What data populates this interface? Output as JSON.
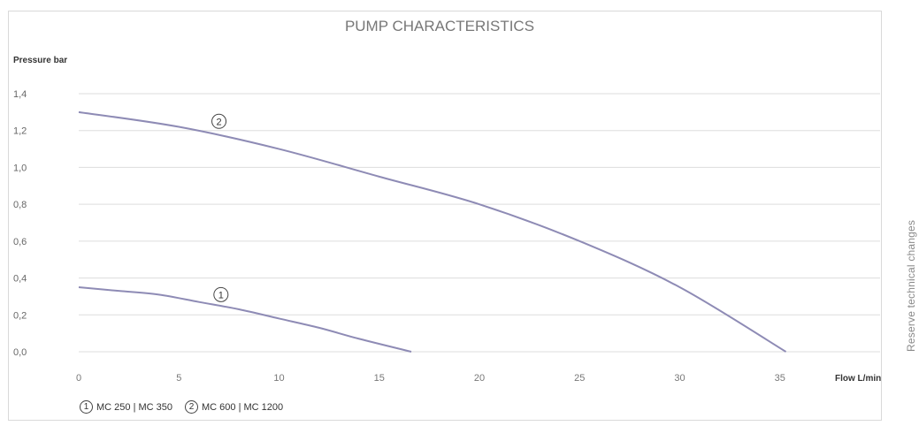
{
  "side_note": "Reserve technical changes",
  "chart_data": {
    "type": "line",
    "title": "PUMP CHARACTERISTICS",
    "ylabel": "Pressure bar",
    "xlabel": "Flow L/min",
    "xlim": [
      0,
      40
    ],
    "ylim": [
      0,
      1.4
    ],
    "x_ticks": [
      0,
      5,
      10,
      15,
      20,
      25,
      30,
      35
    ],
    "x_tick_labels": [
      "0",
      "5",
      "10",
      "15",
      "20",
      "25",
      "30",
      "35"
    ],
    "y_ticks": [
      0,
      0.2,
      0.4,
      0.6,
      0.8,
      1.0,
      1.2,
      1.4
    ],
    "y_tick_labels": [
      "0,0",
      "0,2",
      "0,4",
      "0,6",
      "0,8",
      "1,0",
      "1,2",
      "1,4"
    ],
    "grid": true,
    "line_color": "#8e8bb5",
    "series": [
      {
        "label": "1",
        "x": [
          0,
          2,
          4,
          6,
          8,
          10,
          12,
          14,
          16.6
        ],
        "y": [
          0.35,
          0.33,
          0.31,
          0.27,
          0.23,
          0.18,
          0.13,
          0.07,
          0.0
        ],
        "marker_at": [
          7.1,
          0.31
        ]
      },
      {
        "label": "2",
        "x": [
          0,
          5,
          10,
          15,
          20,
          25,
          30,
          35.3
        ],
        "y": [
          1.3,
          1.22,
          1.1,
          0.95,
          0.8,
          0.6,
          0.35,
          0.0
        ],
        "marker_at": [
          7.0,
          1.25
        ]
      }
    ],
    "legend": [
      {
        "badge": "1",
        "text": "MC 250 | MC 350"
      },
      {
        "badge": "2",
        "text": "MC 600 | MC 1200"
      }
    ]
  }
}
